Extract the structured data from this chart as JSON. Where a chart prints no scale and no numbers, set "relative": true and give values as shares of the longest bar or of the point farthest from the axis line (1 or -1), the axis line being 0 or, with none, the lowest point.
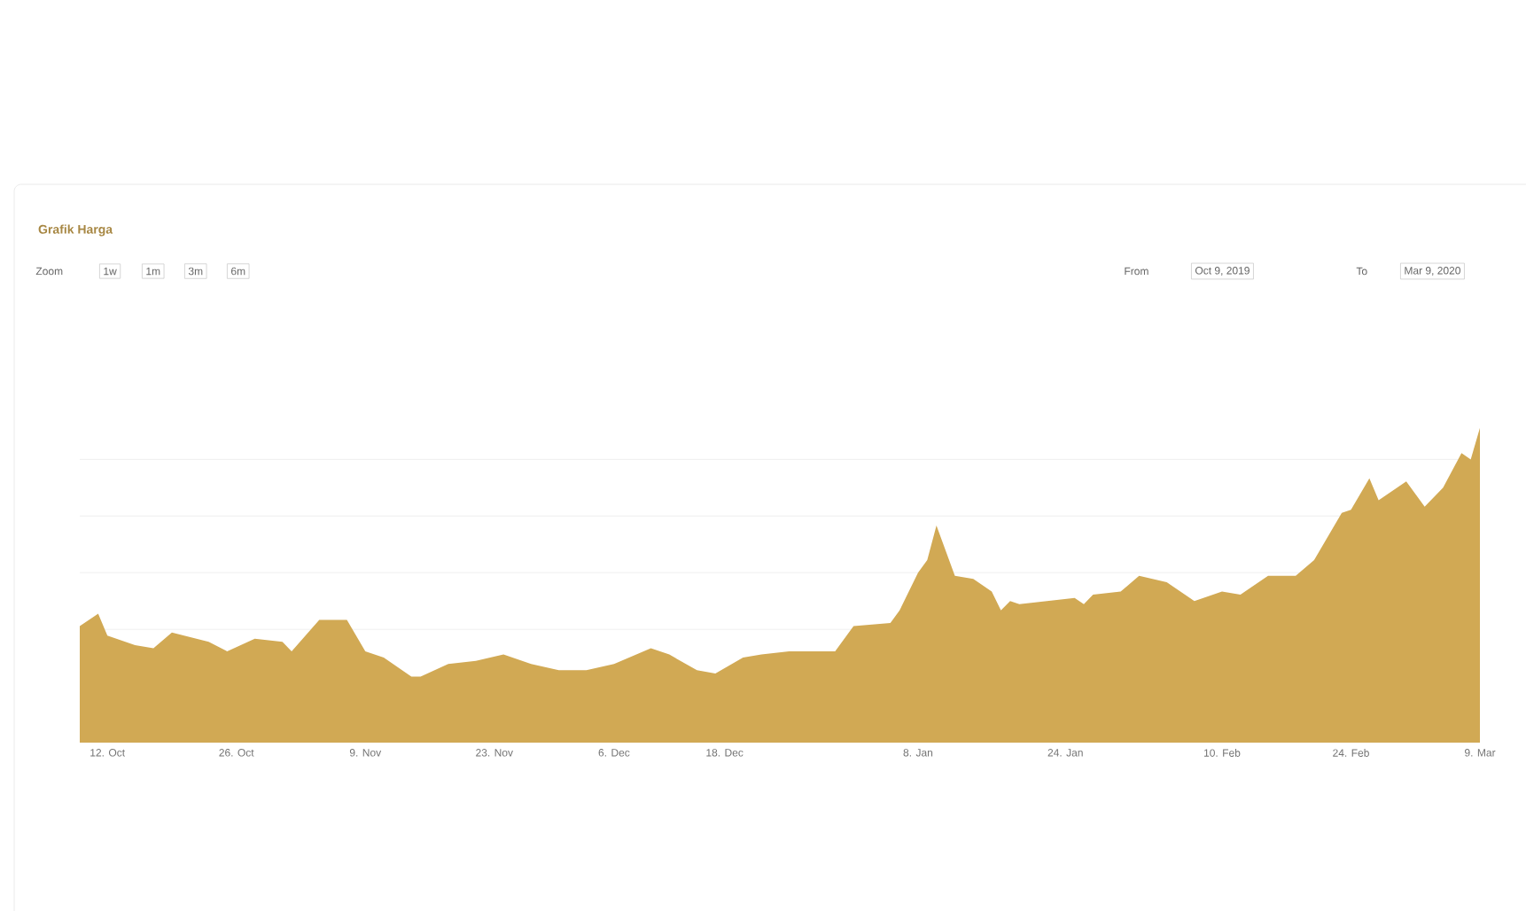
{
  "chart_data": {
    "type": "area",
    "title": "Grafik Harga",
    "relative": true,
    "color": "#d1a954",
    "grid": "y",
    "annotations": [
      "Zoom",
      "1w",
      "1m",
      "3m",
      "6m",
      "From",
      "Oct 9, 2019",
      "To",
      "Mar 9, 2020"
    ],
    "x": [
      "2019-10-09",
      "2019-10-11",
      "2019-10-12",
      "2019-10-15",
      "2019-10-17",
      "2019-10-19",
      "2019-10-23",
      "2019-10-25",
      "2019-10-28",
      "2019-10-31",
      "2019-11-01",
      "2019-11-04",
      "2019-11-07",
      "2019-11-09",
      "2019-11-11",
      "2019-11-14",
      "2019-11-15",
      "2019-11-18",
      "2019-11-21",
      "2019-11-24",
      "2019-11-27",
      "2019-11-30",
      "2019-12-03",
      "2019-12-06",
      "2019-12-10",
      "2019-12-12",
      "2019-12-15",
      "2019-12-17",
      "2019-12-20",
      "2019-12-22",
      "2019-12-25",
      "2019-12-30",
      "2020-01-01",
      "2020-01-05",
      "2020-01-06",
      "2020-01-08",
      "2020-01-09",
      "2020-01-10",
      "2020-01-12",
      "2020-01-14",
      "2020-01-16",
      "2020-01-17",
      "2020-01-18",
      "2020-01-19",
      "2020-01-22",
      "2020-01-25",
      "2020-01-26",
      "2020-01-27",
      "2020-01-30",
      "2020-02-01",
      "2020-02-04",
      "2020-02-07",
      "2020-02-10",
      "2020-02-12",
      "2020-02-15",
      "2020-02-18",
      "2020-02-20",
      "2020-02-23",
      "2020-02-24",
      "2020-02-26",
      "2020-02-27",
      "2020-03-01",
      "2020-03-03",
      "2020-03-05",
      "2020-03-07",
      "2020-03-08",
      "2020-03-09"
    ],
    "values": [
      0.37,
      0.41,
      0.34,
      0.31,
      0.3,
      0.35,
      0.32,
      0.29,
      0.33,
      0.32,
      0.29,
      0.39,
      0.39,
      0.29,
      0.27,
      0.21,
      0.21,
      0.25,
      0.26,
      0.28,
      0.25,
      0.23,
      0.23,
      0.25,
      0.3,
      0.28,
      0.23,
      0.22,
      0.27,
      0.28,
      0.29,
      0.29,
      0.37,
      0.38,
      0.42,
      0.54,
      0.58,
      0.69,
      0.53,
      0.52,
      0.48,
      0.42,
      0.45,
      0.44,
      0.45,
      0.46,
      0.44,
      0.47,
      0.48,
      0.53,
      0.51,
      0.45,
      0.48,
      0.47,
      0.53,
      0.53,
      0.58,
      0.73,
      0.74,
      0.84,
      0.77,
      0.83,
      0.75,
      0.81,
      0.92,
      0.9,
      1
    ],
    "xlim": [
      "2019-10-09",
      "2020-03-09"
    ],
    "xticks": [
      {
        "value": "2019-10-12",
        "label": "12. Oct"
      },
      {
        "value": "2019-10-26",
        "label": "26. Oct"
      },
      {
        "value": "2019-11-09",
        "label": "9. Nov"
      },
      {
        "value": "2019-11-23",
        "label": "23. Nov"
      },
      {
        "value": "2019-12-06",
        "label": "6. Dec"
      },
      {
        "value": "2019-12-18",
        "label": "18. Dec"
      },
      {
        "value": "2020-01-08",
        "label": "8. Jan"
      },
      {
        "value": "2020-01-24",
        "label": "24. Jan"
      },
      {
        "value": "2020-02-10",
        "label": "10. Feb"
      },
      {
        "value": "2020-02-24",
        "label": "24. Feb"
      },
      {
        "value": "2020-03-09",
        "label": "9. Mar"
      }
    ]
  }
}
